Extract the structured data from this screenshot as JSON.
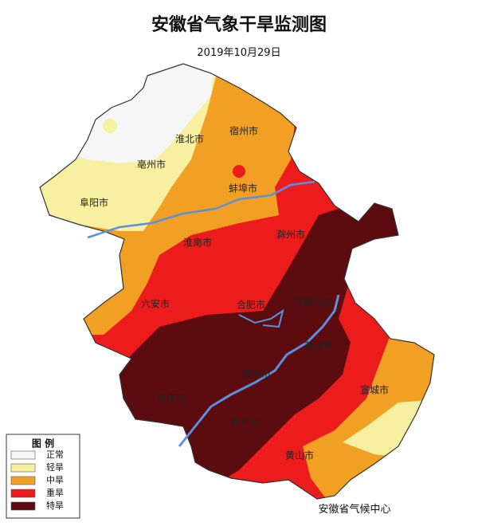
{
  "header": {
    "title": "安徽省气象干旱监测图",
    "date": "2019年10月29日"
  },
  "cities": [
    {
      "label": "淮北市"
    },
    {
      "label": "宿州市"
    },
    {
      "label": "亳州市"
    },
    {
      "label": "蚌埠市"
    },
    {
      "label": "阜阳市"
    },
    {
      "label": "淮南市"
    },
    {
      "label": "滁州市"
    },
    {
      "label": "六安市"
    },
    {
      "label": "合肥市"
    },
    {
      "label": "马鞍山市"
    },
    {
      "label": "芜湖市"
    },
    {
      "label": "铜陵市"
    },
    {
      "label": "安庆市"
    },
    {
      "label": "池州市"
    },
    {
      "label": "宣城市"
    },
    {
      "label": "黄山市"
    }
  ],
  "legend": {
    "title": "图 例",
    "items": [
      {
        "label": "正常",
        "color": "#f6f6f6"
      },
      {
        "label": "轻旱",
        "color": "#f7f0a0"
      },
      {
        "label": "中旱",
        "color": "#f2a023"
      },
      {
        "label": "重旱",
        "color": "#ec1c1c"
      },
      {
        "label": "特旱",
        "color": "#5c0b0e"
      }
    ]
  },
  "source": "安徽省气候中心"
}
